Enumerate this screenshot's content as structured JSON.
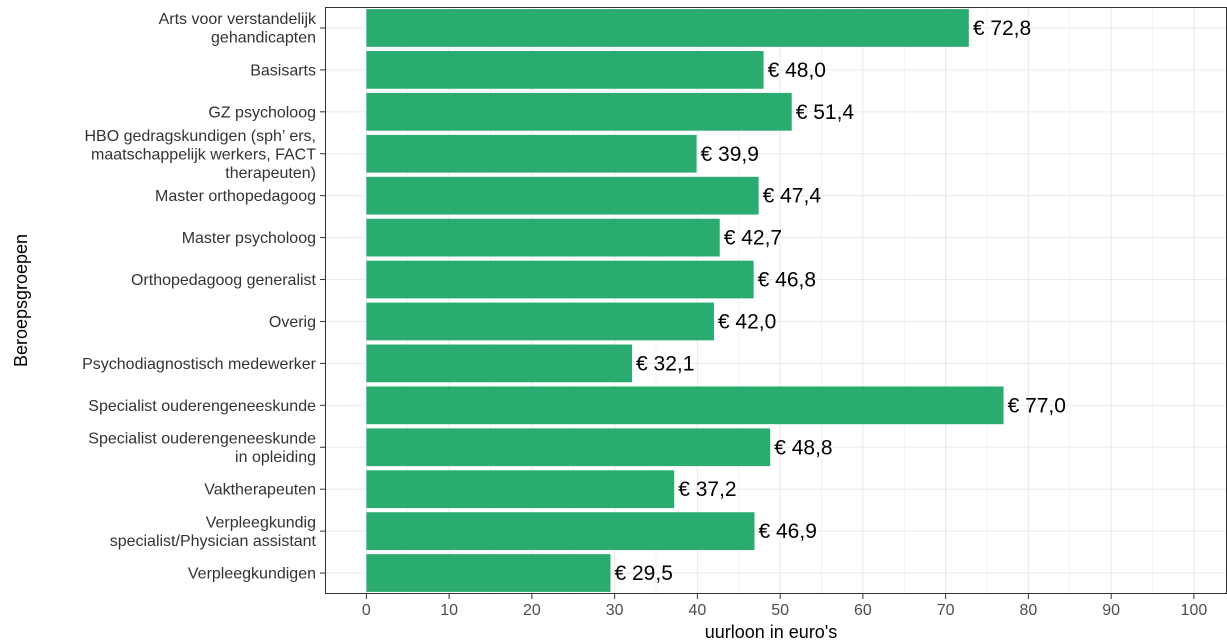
{
  "chart_data": {
    "type": "bar",
    "orientation": "horizontal",
    "categories": [
      "Arts voor verstandelijk\ngehandicapten",
      "Basisarts",
      "GZ psycholoog",
      "HBO gedragskundigen (sph’ ers,\nmaatschappelijk werkers, FACT\ntherapeuten)",
      "Master orthopedagoog",
      "Master psycholoog",
      "Orthopedagoog generalist",
      "Overig",
      "Psychodiagnostisch medewerker",
      "Specialist ouderengeneeskunde",
      "Specialist ouderengeneeskunde\nin opleiding",
      "Vaktherapeuten",
      "Verpleegkundig\nspecialist/Physician assistant",
      "Verpleegkundigen"
    ],
    "values": [
      72.8,
      48.0,
      51.4,
      39.9,
      47.4,
      42.7,
      46.8,
      42.0,
      32.1,
      77.0,
      48.8,
      37.2,
      46.9,
      29.5
    ],
    "value_labels": [
      "€ 72,8",
      "€ 48,0",
      "€ 51,4",
      "€ 39,9",
      "€ 47,4",
      "€ 42,7",
      "€ 46,8",
      "€ 42,0",
      "€ 32,1",
      "€ 77,0",
      "€ 48,8",
      "€ 37,2",
      "€ 46,9",
      "€ 29,5"
    ],
    "xlabel": "uurloon in euro's",
    "ylabel": "Beroepsgroepen",
    "xlim": [
      -5,
      104
    ],
    "xticks": [
      "0",
      "10",
      "20",
      "30",
      "40",
      "50",
      "60",
      "70",
      "80",
      "90",
      "100"
    ],
    "grid": true,
    "bar_color": "#2aab6f",
    "grid_color": "#ebebeb",
    "panel_border_color": "#333333"
  }
}
